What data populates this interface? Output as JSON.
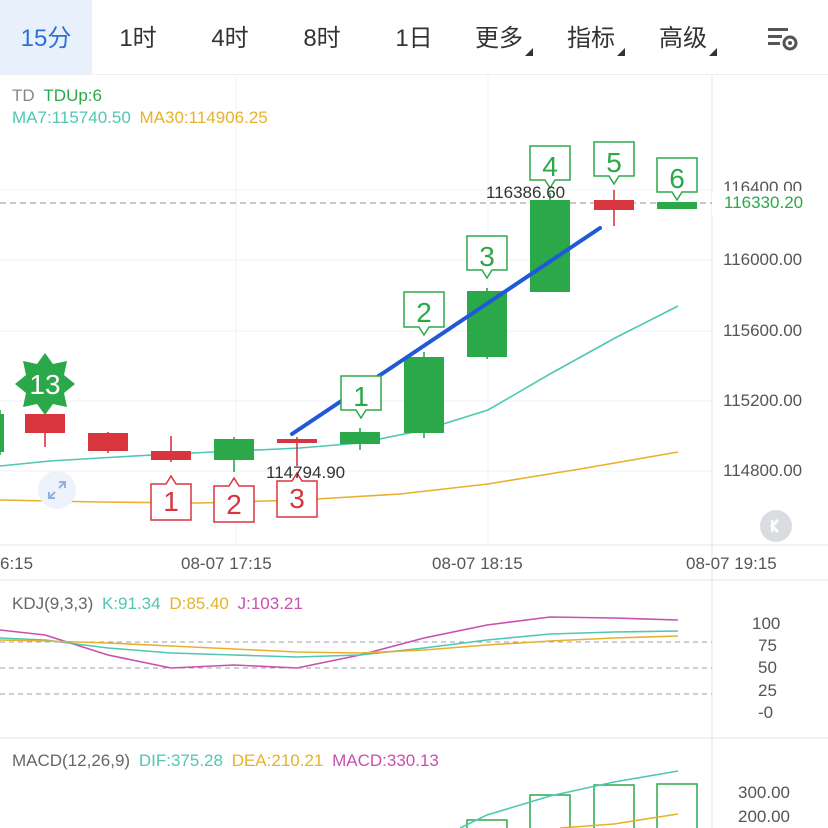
{
  "tabs": [
    {
      "label": "15分",
      "active": true
    },
    {
      "label": "1时"
    },
    {
      "label": "4时"
    },
    {
      "label": "8时"
    },
    {
      "label": "1日"
    },
    {
      "label": "更多",
      "dropdown": true
    },
    {
      "label": "指标",
      "dropdown": true
    },
    {
      "label": "高级",
      "dropdown": true
    }
  ],
  "settings_icon": "chart-settings-icon",
  "main": {
    "td_title": "TD",
    "td_value": "TDUp:6",
    "ma7": "MA7:115740.50",
    "ma30": "MA30:114906.25",
    "price_ticks": [
      "116400.00",
      "116000.00",
      "115600.00",
      "115200.00",
      "114800.00"
    ],
    "current_price": "116330.20",
    "high_label": "116386.60",
    "low_label": "114794.90",
    "time_labels": [
      "6:15",
      "08-07 17:15",
      "08-07 18:15",
      "08-07 19:15"
    ]
  },
  "kdj": {
    "title": "KDJ(9,3,3)",
    "k": "K:91.34",
    "d": "D:85.40",
    "j": "J:103.21",
    "ticks": [
      "100",
      "75",
      "50",
      "25",
      "-0"
    ]
  },
  "macd": {
    "title": "MACD(12,26,9)",
    "dif": "DIF:375.28",
    "dea": "DEA:210.21",
    "macd": "MACD:330.13",
    "ticks": [
      "300.00",
      "200.00"
    ]
  },
  "chart_data": {
    "type": "candlestick",
    "candles": [
      {
        "open": 115040,
        "close": 115260,
        "high": 115290,
        "low": 115020,
        "dir": "up"
      },
      {
        "open": 115080,
        "close": 114970,
        "high": 115080,
        "low": 114900,
        "dir": "down"
      },
      {
        "open": 114970,
        "close": 114880,
        "high": 114970,
        "low": 114870,
        "dir": "down"
      },
      {
        "open": 114890,
        "close": 114840,
        "high": 114960,
        "low": 114800,
        "dir": "down"
      },
      {
        "open": 114840,
        "close": 114950,
        "high": 114960,
        "low": 114780,
        "dir": "up"
      },
      {
        "open": 114960,
        "close": 114930,
        "high": 114960,
        "low": 114795,
        "dir": "down"
      },
      {
        "open": 114950,
        "close": 115000,
        "high": 115010,
        "low": 114910,
        "dir": "up"
      },
      {
        "open": 115020,
        "close": 115440,
        "high": 115470,
        "low": 115010,
        "dir": "up"
      },
      {
        "open": 115430,
        "close": 115820,
        "high": 115830,
        "low": 115420,
        "dir": "up"
      },
      {
        "open": 115800,
        "close": 116330,
        "high": 116387,
        "low": 115800,
        "dir": "up"
      },
      {
        "open": 116330,
        "close": 116270,
        "high": 116330,
        "low": 116170,
        "dir": "down"
      },
      {
        "open": 116300,
        "close": 116330,
        "high": 116330,
        "low": 116300,
        "dir": "up"
      }
    ],
    "markers_up": [
      "13",
      "1",
      "2",
      "3",
      "4",
      "5",
      "6"
    ],
    "markers_down": [
      "1",
      "2",
      "3"
    ],
    "colors": {
      "up": "#2ba84a",
      "down": "#d8353f",
      "ma7": "#4fc7b3",
      "ma30": "#e8b12b",
      "j": "#c94fb0",
      "trend": "#1f5ad6"
    }
  }
}
